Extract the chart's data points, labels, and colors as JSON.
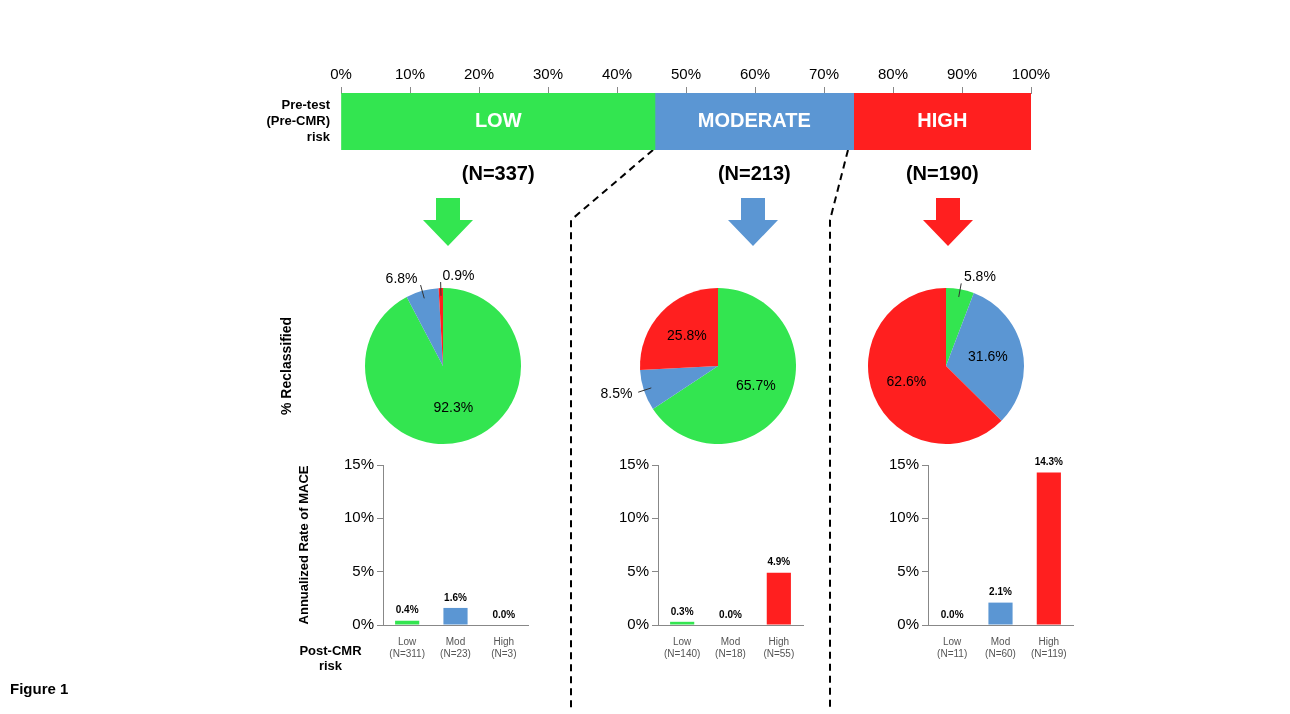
{
  "chart_data": [
    {
      "type": "bar",
      "orientation": "horizontal",
      "stacked": true,
      "categories": [
        "Pre-test\n(Pre-CMR)\nrisk"
      ],
      "series": [
        {
          "name": "LOW",
          "color": "#33e550",
          "values": [
            45.5
          ]
        },
        {
          "name": "MODERATE",
          "color": "#5b96d3",
          "values": [
            28.8
          ]
        },
        {
          "name": "HIGH",
          "color": "#ff1f1f",
          "values": [
            25.7
          ]
        }
      ],
      "xlim": [
        0,
        100
      ],
      "xticks": [
        {
          "value": 0,
          "label": "0%"
        },
        {
          "value": 10,
          "label": "10%"
        },
        {
          "value": 20,
          "label": "20%"
        },
        {
          "value": 30,
          "label": "30%"
        },
        {
          "value": 40,
          "label": "40%"
        },
        {
          "value": 50,
          "label": "50%"
        },
        {
          "value": 60,
          "label": "60%"
        },
        {
          "value": 70,
          "label": "70%"
        },
        {
          "value": 80,
          "label": "80%"
        },
        {
          "value": 90,
          "label": "90%"
        },
        {
          "value": 100,
          "label": "100%"
        }
      ],
      "legend": false,
      "annotations": [
        "(N=337)",
        "(N=213)",
        "(N=190)",
        "Figure 1"
      ]
    },
    {
      "type": "pie",
      "categories": [
        null,
        null,
        null
      ],
      "values": [
        92.3,
        6.8,
        0.9
      ],
      "colors": [
        "#33e550",
        "#5b96d3",
        "#ff1f1f"
      ],
      "value_labels": [
        "92.3%",
        "6.8%",
        "0.9%"
      ],
      "ylabel": "% Reclassified"
    },
    {
      "type": "pie",
      "categories": [
        null,
        null,
        null
      ],
      "values": [
        65.7,
        8.5,
        25.8
      ],
      "colors": [
        "#33e550",
        "#5b96d3",
        "#ff1f1f"
      ],
      "value_labels": [
        "65.7%",
        "8.5%",
        "25.8%"
      ]
    },
    {
      "type": "pie",
      "categories": [
        null,
        null,
        null
      ],
      "values": [
        5.8,
        31.6,
        62.6
      ],
      "colors": [
        "#33e550",
        "#5b96d3",
        "#ff1f1f"
      ],
      "value_labels": [
        "5.8%",
        "31.6%",
        "62.6%"
      ]
    },
    {
      "type": "bar",
      "categories": [
        "Low\n(N=311)",
        "Mod\n(N=23)",
        "High\n(N=3)"
      ],
      "values": [
        0.4,
        1.6,
        0.0
      ],
      "colors": [
        "#33e550",
        "#5b96d3",
        "#ff1f1f"
      ],
      "ylim": [
        0,
        15
      ],
      "yticks": [
        {
          "value": 0,
          "label": "0%"
        },
        {
          "value": 5,
          "label": "5%"
        },
        {
          "value": 10,
          "label": "10%"
        },
        {
          "value": 15,
          "label": "15%"
        }
      ],
      "value_labels": [
        "0.4%",
        "1.6%",
        "0.0%"
      ],
      "ylabel": "Annualized Rate of MACE",
      "xlabel": "Post-CMR\nrisk"
    },
    {
      "type": "bar",
      "categories": [
        "Low\n(N=140)",
        "Mod\n(N=18)",
        "High\n(N=55)"
      ],
      "values": [
        0.3,
        0.0,
        4.9
      ],
      "colors": [
        "#33e550",
        "#5b96d3",
        "#ff1f1f"
      ],
      "ylim": [
        0,
        15
      ],
      "yticks": [
        {
          "value": 0,
          "label": "0%"
        },
        {
          "value": 5,
          "label": "5%"
        },
        {
          "value": 10,
          "label": "10%"
        },
        {
          "value": 15,
          "label": "15%"
        }
      ],
      "value_labels": [
        "0.3%",
        "0.0%",
        "4.9%"
      ]
    },
    {
      "type": "bar",
      "categories": [
        "Low\n(N=11)",
        "Mod\n(N=60)",
        "High\n(N=119)"
      ],
      "values": [
        0.0,
        2.1,
        14.3
      ],
      "colors": [
        "#33e550",
        "#5b96d3",
        "#ff1f1f"
      ],
      "ylim": [
        0,
        15
      ],
      "yticks": [
        {
          "value": 0,
          "label": "0%"
        },
        {
          "value": 5,
          "label": "5%"
        },
        {
          "value": 10,
          "label": "10%"
        },
        {
          "value": 15,
          "label": "15%"
        }
      ],
      "value_labels": [
        "0.0%",
        "2.1%",
        "14.3%"
      ]
    }
  ]
}
